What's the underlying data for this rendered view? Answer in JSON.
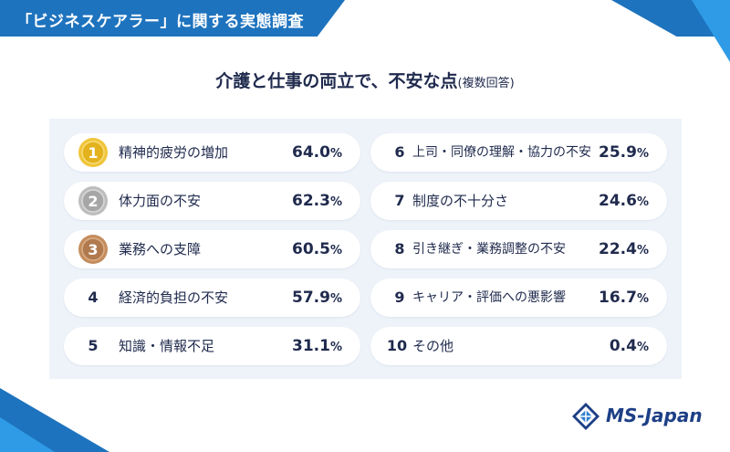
{
  "header": {
    "tag": "「ビジネスケアラー」に関する実態調査"
  },
  "title": {
    "main": "介護と仕事の両立で、不安な点",
    "sub": "(複数回答)"
  },
  "colors": {
    "brand_blue": "#1e73be",
    "accent_blue": "#2f9be6",
    "gold": "#e3b21c",
    "silver": "#a6a6a6",
    "bronze": "#b07a4e",
    "text": "#1f2a4d",
    "panel": "#eef3f9"
  },
  "items": [
    {
      "rank": "1",
      "label": "精神的疲労の増加",
      "value": "64.0",
      "unit": "%",
      "medal": "gold-medal-icon"
    },
    {
      "rank": "2",
      "label": "体力面の不安",
      "value": "62.3",
      "unit": "%",
      "medal": "silver-medal-icon"
    },
    {
      "rank": "3",
      "label": "業務への支障",
      "value": "60.5",
      "unit": "%",
      "medal": "bronze-medal-icon"
    },
    {
      "rank": "4",
      "label": "経済的負担の不安",
      "value": "57.9",
      "unit": "%"
    },
    {
      "rank": "5",
      "label": "知識・情報不足",
      "value": "31.1",
      "unit": "%"
    },
    {
      "rank": "6",
      "label": "上司・同僚の理解・協力の不安",
      "value": "25.9",
      "unit": "%"
    },
    {
      "rank": "7",
      "label": "制度の不十分さ",
      "value": "24.6",
      "unit": "%"
    },
    {
      "rank": "8",
      "label": "引き継ぎ・業務調整の不安",
      "value": "22.4",
      "unit": "%"
    },
    {
      "rank": "9",
      "label": "キャリア・評価への悪影響",
      "value": "16.7",
      "unit": "%"
    },
    {
      "rank": "10",
      "label": "その他",
      "value": "0.4",
      "unit": "%"
    }
  ],
  "logo": {
    "text": "MS-Japan",
    "icon": "ms-japan-logo-icon"
  }
}
